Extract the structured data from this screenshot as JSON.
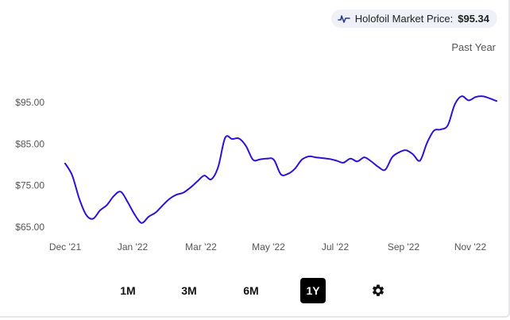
{
  "market_price": {
    "label": "Holofoil Market Price:",
    "value": "$95.34",
    "icon": "line-chart-icon"
  },
  "period_label": "Past Year",
  "ranges": {
    "r1m": "1M",
    "r3m": "3M",
    "r6m": "6M",
    "r1y": "1Y",
    "active": "1Y",
    "settings_icon": "gear-icon"
  },
  "chart_data": {
    "type": "line",
    "title": "",
    "xlabel": "",
    "ylabel": "",
    "line_color": "#2b12d6",
    "ylim": [
      60,
      100
    ],
    "y_ticks": [
      {
        "value": 65,
        "label": "$65.00"
      },
      {
        "value": 75,
        "label": "$75.00"
      },
      {
        "value": 85,
        "label": "$85.00"
      },
      {
        "value": 95,
        "label": "$95.00"
      }
    ],
    "x_ticks": [
      {
        "date": "2021-12-01",
        "label": "Dec '21"
      },
      {
        "date": "2022-01-01",
        "label": "Jan '22"
      },
      {
        "date": "2022-03-01",
        "label": "Mar '22"
      },
      {
        "date": "2022-05-01",
        "label": "May '22"
      },
      {
        "date": "2022-07-01",
        "label": "Jul '22"
      },
      {
        "date": "2022-09-01",
        "label": "Sep '22"
      },
      {
        "date": "2022-11-01",
        "label": "Nov '22"
      }
    ],
    "series": [
      {
        "points": [
          [
            "2021-12-01",
            80.3
          ],
          [
            "2021-12-06",
            77.5
          ],
          [
            "2021-12-11",
            72.0
          ],
          [
            "2021-12-16",
            68.0
          ],
          [
            "2021-12-21",
            67.0
          ],
          [
            "2021-12-26",
            69.0
          ],
          [
            "2021-12-31",
            70.3
          ],
          [
            "2022-01-05",
            72.5
          ],
          [
            "2022-01-10",
            73.5
          ],
          [
            "2022-01-15",
            71.0
          ],
          [
            "2022-01-20",
            68.0
          ],
          [
            "2022-01-25",
            66.0
          ],
          [
            "2022-01-30",
            67.5
          ],
          [
            "2022-02-04",
            68.5
          ],
          [
            "2022-02-09",
            70.2
          ],
          [
            "2022-02-14",
            71.8
          ],
          [
            "2022-02-19",
            72.8
          ],
          [
            "2022-02-24",
            73.3
          ],
          [
            "2022-03-01",
            74.5
          ],
          [
            "2022-03-06",
            76.0
          ],
          [
            "2022-03-11",
            77.4
          ],
          [
            "2022-03-16",
            76.5
          ],
          [
            "2022-03-21",
            79.5
          ],
          [
            "2022-03-26",
            86.5
          ],
          [
            "2022-03-31",
            86.2
          ],
          [
            "2022-04-05",
            86.3
          ],
          [
            "2022-04-10",
            84.5
          ],
          [
            "2022-04-15",
            81.2
          ],
          [
            "2022-04-20",
            81.3
          ],
          [
            "2022-04-25",
            81.5
          ],
          [
            "2022-04-30",
            81.2
          ],
          [
            "2022-05-05",
            77.7
          ],
          [
            "2022-05-10",
            77.8
          ],
          [
            "2022-05-15",
            79.0
          ],
          [
            "2022-05-20",
            81.2
          ],
          [
            "2022-05-25",
            82.0
          ],
          [
            "2022-05-30",
            81.8
          ],
          [
            "2022-06-04",
            81.6
          ],
          [
            "2022-06-09",
            81.4
          ],
          [
            "2022-06-14",
            81.0
          ],
          [
            "2022-06-19",
            80.5
          ],
          [
            "2022-06-24",
            81.5
          ],
          [
            "2022-06-29",
            80.8
          ],
          [
            "2022-07-04",
            81.8
          ],
          [
            "2022-07-09",
            80.8
          ],
          [
            "2022-07-14",
            79.5
          ],
          [
            "2022-07-19",
            78.8
          ],
          [
            "2022-07-24",
            81.8
          ],
          [
            "2022-07-29",
            83.0
          ],
          [
            "2022-08-03",
            83.5
          ],
          [
            "2022-08-08",
            82.5
          ],
          [
            "2022-08-13",
            81.0
          ],
          [
            "2022-08-18",
            85.2
          ],
          [
            "2022-08-23",
            88.2
          ],
          [
            "2022-08-28",
            88.5
          ],
          [
            "2022-09-02",
            89.5
          ],
          [
            "2022-09-07",
            94.5
          ],
          [
            "2022-09-12",
            96.5
          ],
          [
            "2022-09-17",
            95.5
          ],
          [
            "2022-09-22",
            96.3
          ],
          [
            "2022-09-27",
            96.5
          ],
          [
            "2022-10-02",
            96.0
          ],
          [
            "2022-10-07",
            95.34
          ]
        ]
      }
    ]
  }
}
